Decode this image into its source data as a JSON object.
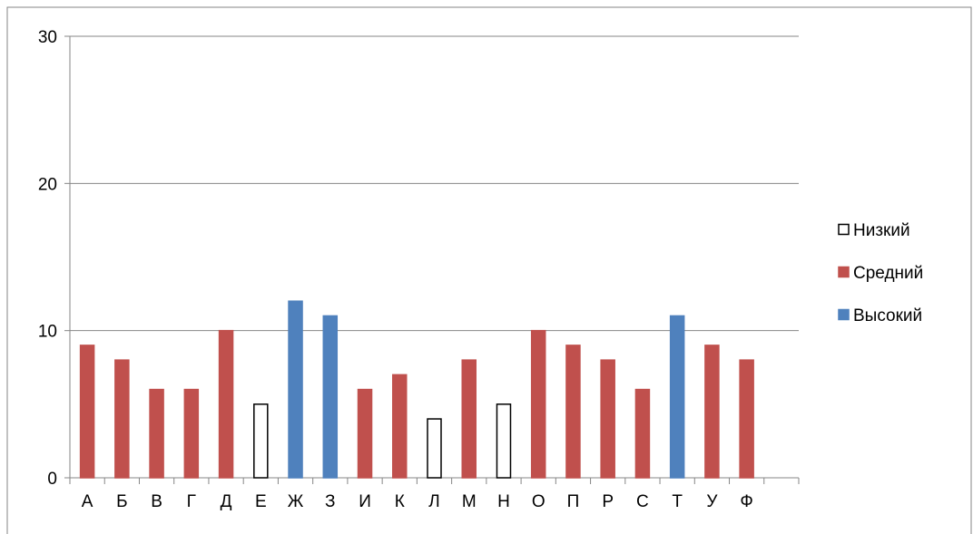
{
  "chart_data": {
    "type": "bar",
    "categories": [
      "А",
      "Б",
      "В",
      "Г",
      "Д",
      "Е",
      "Ж",
      "З",
      "И",
      "К",
      "Л",
      "М",
      "Н",
      "О",
      "П",
      "Р",
      "С",
      "Т",
      "У",
      "Ф"
    ],
    "values": [
      9,
      8,
      6,
      6,
      10,
      5,
      12,
      11,
      6,
      7,
      4,
      8,
      5,
      10,
      9,
      8,
      6,
      11,
      9,
      8
    ],
    "levels": [
      "Средний",
      "Средний",
      "Средний",
      "Средний",
      "Средний",
      "Низкий",
      "Высокий",
      "Высокий",
      "Средний",
      "Средний",
      "Низкий",
      "Средний",
      "Низкий",
      "Средний",
      "Средний",
      "Средний",
      "Средний",
      "Высокий",
      "Средний",
      "Средний"
    ],
    "series": [
      {
        "name": "Низкий",
        "fill": "#ffffff",
        "stroke": "#000000"
      },
      {
        "name": "Средний",
        "fill": "#c0504d",
        "stroke": "#c0504d"
      },
      {
        "name": "Высокий",
        "fill": "#4f81bd",
        "stroke": "#4f81bd"
      }
    ],
    "title": "",
    "xlabel": "",
    "ylabel": "",
    "ylim": [
      0,
      30
    ],
    "yticks": [
      0,
      10,
      20,
      30
    ],
    "grid": true,
    "legend_position": "right"
  }
}
